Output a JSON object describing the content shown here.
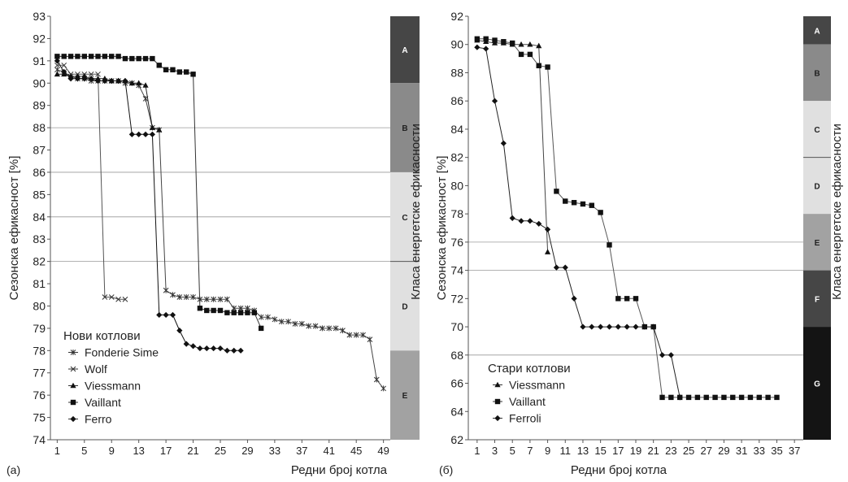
{
  "chart_data": [
    {
      "panel_label": "(a)",
      "type": "line",
      "ylabel": "Сезонска ефикасност [%]",
      "xlabel": "Редни број котла",
      "right_label": "Класа енергетске ефикасности",
      "xlim": [
        0,
        50
      ],
      "ylim": [
        74,
        93
      ],
      "x_ticks": [
        1,
        5,
        9,
        13,
        17,
        21,
        25,
        29,
        33,
        37,
        41,
        45,
        49
      ],
      "y_ticks": [
        74,
        75,
        76,
        77,
        78,
        79,
        80,
        81,
        82,
        83,
        84,
        85,
        86,
        87,
        88,
        89,
        90,
        91,
        92,
        93
      ],
      "grid_lines": [
        88,
        86,
        84,
        82
      ],
      "legend_title": "Нови котлови",
      "classes": [
        {
          "label": "A",
          "from": 90,
          "to": 93,
          "color": "#464646"
        },
        {
          "label": "B",
          "from": 86,
          "to": 90,
          "color": "#8a8a8a"
        },
        {
          "label": "C",
          "from": 82,
          "to": 86,
          "color": "#e0e0e0"
        },
        {
          "label": "D",
          "from": 78,
          "to": 82,
          "color": "#e0e0e0"
        },
        {
          "label": "E",
          "from": 74,
          "to": 78,
          "color": "#a2a2a2"
        }
      ],
      "class_dividers": [
        82
      ],
      "series": [
        {
          "name": "Fonderie Sime",
          "marker": "star",
          "x": [
            1,
            2,
            3,
            4,
            5,
            6,
            7,
            8,
            9,
            10,
            11,
            12,
            13,
            14,
            15,
            16,
            17,
            18,
            19,
            20,
            21,
            22,
            23,
            24,
            25,
            26,
            27,
            28,
            29,
            30,
            31,
            32,
            33,
            34,
            35,
            36,
            37,
            38,
            39,
            40,
            41,
            42,
            43,
            44,
            45,
            46,
            47,
            48,
            49
          ],
          "values": [
            90.6,
            90.5,
            90.3,
            90.2,
            90.2,
            90.1,
            90.1,
            90.1,
            90.1,
            90.1,
            90.0,
            90.0,
            89.9,
            89.3,
            88.0,
            87.9,
            80.7,
            80.5,
            80.4,
            80.4,
            80.4,
            80.3,
            80.3,
            80.3,
            80.3,
            80.3,
            79.9,
            79.9,
            79.9,
            79.8,
            79.5,
            79.5,
            79.4,
            79.3,
            79.3,
            79.2,
            79.2,
            79.1,
            79.1,
            79.0,
            79.0,
            79.0,
            78.9,
            78.7,
            78.7,
            78.7,
            78.5,
            76.7,
            76.3
          ]
        },
        {
          "name": "Wolf",
          "marker": "x",
          "x": [
            1,
            2,
            3,
            4,
            5,
            6,
            7,
            8,
            9,
            10,
            11
          ],
          "values": [
            90.8,
            90.8,
            90.4,
            90.4,
            90.4,
            90.4,
            90.4,
            80.4,
            80.4,
            80.3,
            80.3
          ]
        },
        {
          "name": "Viessmann",
          "marker": "triangle",
          "x": [
            1,
            2,
            3,
            4,
            5,
            6,
            7,
            8,
            9,
            10,
            11,
            12,
            13,
            14,
            15,
            16
          ],
          "values": [
            90.4,
            90.4,
            90.3,
            90.3,
            90.3,
            90.2,
            90.2,
            90.2,
            90.1,
            90.1,
            90.1,
            90.0,
            90.0,
            89.9,
            88.0,
            87.9
          ]
        },
        {
          "name": "Vaillant",
          "marker": "square",
          "x": [
            1,
            2,
            3,
            4,
            5,
            6,
            7,
            8,
            9,
            10,
            11,
            12,
            13,
            14,
            15,
            16,
            17,
            18,
            19,
            20,
            21,
            22,
            23,
            24,
            25,
            26,
            27,
            28,
            29,
            30,
            31
          ],
          "values": [
            91.2,
            91.2,
            91.2,
            91.2,
            91.2,
            91.2,
            91.2,
            91.2,
            91.2,
            91.2,
            91.1,
            91.1,
            91.1,
            91.1,
            91.1,
            90.8,
            90.6,
            90.6,
            90.5,
            90.5,
            90.4,
            79.9,
            79.8,
            79.8,
            79.8,
            79.7,
            79.7,
            79.7,
            79.7,
            79.7,
            79.0
          ]
        },
        {
          "name": "Ferro",
          "marker": "diamond",
          "x": [
            1,
            2,
            3,
            4,
            5,
            6,
            7,
            8,
            9,
            10,
            11,
            12,
            13,
            14,
            15,
            16,
            17,
            18,
            19,
            20,
            21,
            22,
            23,
            24,
            25,
            26,
            27,
            28
          ],
          "values": [
            91.0,
            90.5,
            90.2,
            90.2,
            90.2,
            90.2,
            90.1,
            90.1,
            90.1,
            90.1,
            90.1,
            87.7,
            87.7,
            87.7,
            87.7,
            79.6,
            79.6,
            79.6,
            78.9,
            78.3,
            78.2,
            78.1,
            78.1,
            78.1,
            78.1,
            78.0,
            78.0,
            78.0
          ]
        }
      ]
    },
    {
      "panel_label": "(б)",
      "type": "line",
      "ylabel": "Сезонска ефикасност [%]",
      "xlabel": "Редни број котла",
      "right_label": "Класа енергетске ефикасности",
      "xlim": [
        0,
        38
      ],
      "ylim": [
        62,
        92
      ],
      "x_ticks": [
        1,
        3,
        5,
        7,
        9,
        11,
        13,
        15,
        17,
        19,
        21,
        23,
        25,
        27,
        29,
        31,
        33,
        35,
        37
      ],
      "y_ticks": [
        62,
        64,
        66,
        68,
        70,
        72,
        74,
        76,
        78,
        80,
        82,
        84,
        86,
        88,
        90,
        92
      ],
      "grid_lines": [
        76,
        74,
        68
      ],
      "legend_title": "Стари котлови",
      "classes": [
        {
          "label": "A",
          "from": 90,
          "to": 92,
          "color": "#464646"
        },
        {
          "label": "B",
          "from": 86,
          "to": 90,
          "color": "#8a8a8a"
        },
        {
          "label": "C",
          "from": 82,
          "to": 86,
          "color": "#e0e0e0"
        },
        {
          "label": "D",
          "from": 78,
          "to": 82,
          "color": "#e0e0e0"
        },
        {
          "label": "E",
          "from": 74,
          "to": 78,
          "color": "#a2a2a2"
        },
        {
          "label": "F",
          "from": 70,
          "to": 74,
          "color": "#464646"
        },
        {
          "label": "G",
          "from": 62,
          "to": 70,
          "color": "#141414"
        }
      ],
      "class_dividers": [
        82
      ],
      "series": [
        {
          "name": "Viessmann",
          "marker": "triangle",
          "x": [
            1,
            2,
            3,
            4,
            5,
            6,
            7,
            8,
            9
          ],
          "values": [
            90.3,
            90.2,
            90.1,
            90.1,
            90.0,
            90.0,
            90.0,
            89.9,
            75.3
          ]
        },
        {
          "name": "Vaillant",
          "marker": "square",
          "x": [
            1,
            2,
            3,
            4,
            5,
            6,
            7,
            8,
            9,
            10,
            11,
            12,
            13,
            14,
            15,
            16,
            17,
            18,
            19,
            20,
            21,
            22,
            23,
            24,
            25,
            26,
            27,
            28,
            29,
            30,
            31,
            32,
            33,
            34,
            35
          ],
          "values": [
            90.4,
            90.4,
            90.3,
            90.2,
            90.1,
            89.3,
            89.3,
            88.5,
            88.4,
            79.6,
            78.9,
            78.8,
            78.7,
            78.6,
            78.1,
            75.8,
            72.0,
            72.0,
            72.0,
            70.0,
            70.0,
            65.0,
            65.0,
            65.0,
            65.0,
            65.0,
            65.0,
            65.0,
            65.0,
            65.0,
            65.0,
            65.0,
            65.0,
            65.0,
            65.0
          ]
        },
        {
          "name": "Ferroli",
          "marker": "diamond",
          "x": [
            1,
            2,
            3,
            4,
            5,
            6,
            7,
            8,
            9,
            10,
            11,
            12,
            13,
            14,
            15,
            16,
            17,
            18,
            19,
            20,
            21,
            22,
            23,
            24
          ],
          "values": [
            89.8,
            89.7,
            86.0,
            83.0,
            77.7,
            77.5,
            77.5,
            77.3,
            76.9,
            74.2,
            74.2,
            72.0,
            70.0,
            70.0,
            70.0,
            70.0,
            70.0,
            70.0,
            70.0,
            70.0,
            70.0,
            68.0,
            68.0,
            65.0
          ]
        }
      ]
    }
  ]
}
